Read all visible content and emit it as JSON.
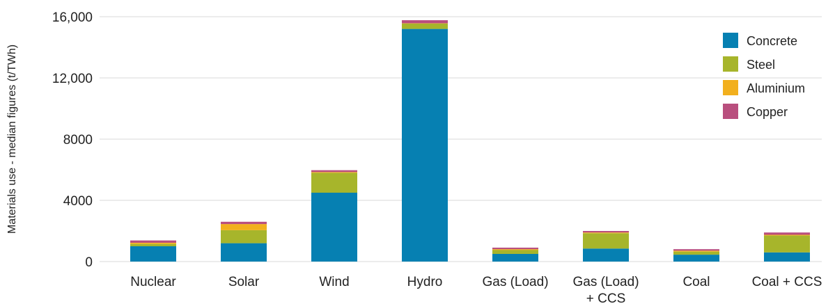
{
  "chart_data": {
    "type": "bar",
    "stacked": true,
    "title": "",
    "xlabel": "",
    "ylabel": "Materials use - median figures (t/TWh)",
    "ylim": [
      0,
      16000
    ],
    "y_ticks": [
      {
        "value": 0,
        "label": "0"
      },
      {
        "value": 4000,
        "label": "4000"
      },
      {
        "value": 8000,
        "label": "8000"
      },
      {
        "value": 12000,
        "label": "12,000"
      },
      {
        "value": 16000,
        "label": "16,000"
      }
    ],
    "grid": true,
    "legend_position": "top-right",
    "categories": [
      [
        "Nuclear"
      ],
      [
        "Solar"
      ],
      [
        "Wind"
      ],
      [
        "Hydro"
      ],
      [
        "Gas (Load)"
      ],
      [
        "Gas (Load)",
        "+ CCS"
      ],
      [
        "Coal"
      ],
      [
        "Coal + CCS"
      ]
    ],
    "series": [
      {
        "name": "Concrete",
        "color": "#0680b2",
        "values": [
          1000,
          1200,
          4500,
          15200,
          500,
          850,
          450,
          600
        ]
      },
      {
        "name": "Steel",
        "color": "#a7b52b",
        "values": [
          150,
          850,
          1300,
          350,
          250,
          1000,
          200,
          1100
        ]
      },
      {
        "name": "Aluminium",
        "color": "#f2b01e",
        "values": [
          80,
          400,
          50,
          20,
          60,
          50,
          60,
          50
        ]
      },
      {
        "name": "Copper",
        "color": "#b94f7e",
        "values": [
          150,
          150,
          120,
          200,
          100,
          100,
          100,
          150
        ]
      }
    ]
  }
}
